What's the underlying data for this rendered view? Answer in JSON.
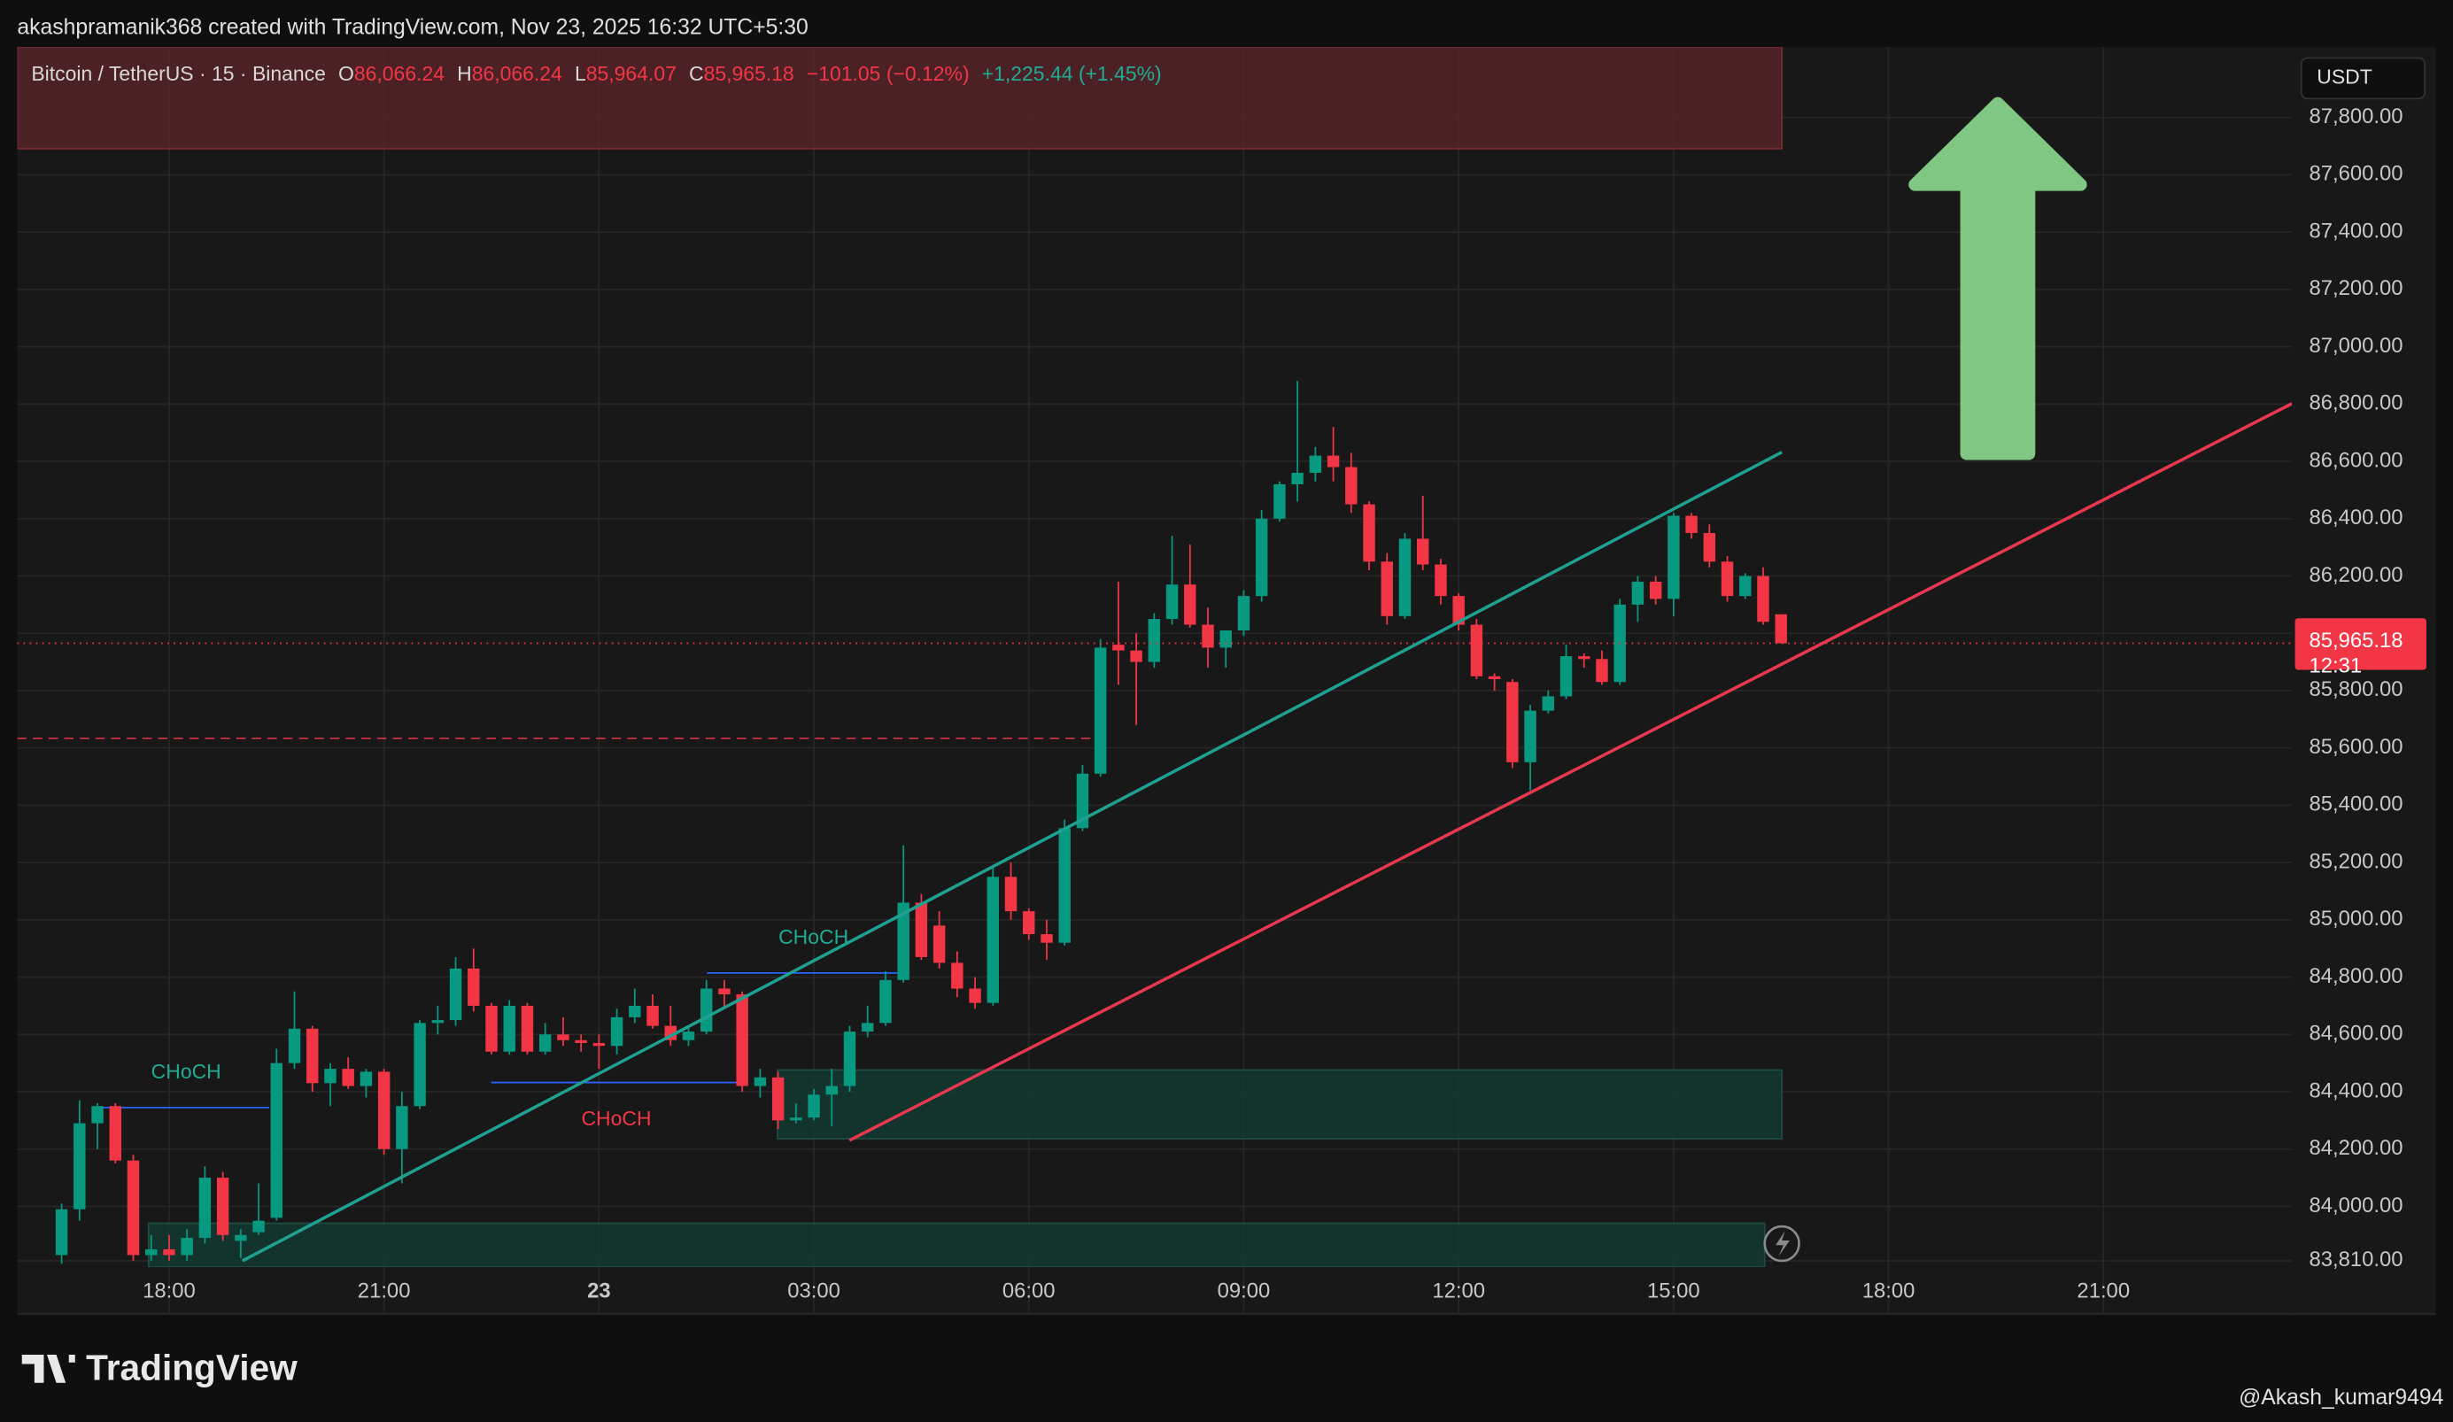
{
  "header": {
    "attribution": "akashpramanik368 created with TradingView.com, Nov 23, 2025 16:32 UTC+5:30",
    "symbol": "Bitcoin / TetherUS · 15 · Binance",
    "ohlc": [
      {
        "key": "O",
        "value": "86,066.24"
      },
      {
        "key": "H",
        "value": "86,066.24"
      },
      {
        "key": "L",
        "value": "85,964.07"
      },
      {
        "key": "C",
        "value": "85,965.18"
      }
    ],
    "change": "−101.05 (−0.12%)",
    "change_session": "+1,225.44 (+1.45%)"
  },
  "chart_data": {
    "type": "candlestick",
    "x": [
      16.5,
      16.75,
      17,
      17.25,
      17.5,
      17.75,
      18,
      18.25,
      18.5,
      18.75,
      19,
      19.25,
      19.5,
      19.75,
      20,
      20.25,
      20.5,
      20.75,
      21,
      21.25,
      21.5,
      21.75,
      22,
      22.25,
      22.5,
      22.75,
      23,
      23.25,
      23.5,
      23.75,
      24,
      24.25,
      24.5,
      24.75,
      25,
      25.25,
      25.5,
      25.75,
      26,
      26.25,
      26.5,
      26.75,
      27,
      27.25,
      27.5,
      27.75,
      28,
      28.25,
      28.5,
      28.75,
      29,
      29.25,
      29.5,
      29.75,
      30,
      30.25,
      30.5,
      30.75,
      31,
      31.25,
      31.5,
      31.75,
      32,
      32.25,
      32.5,
      32.75,
      33,
      33.25,
      33.5,
      33.75,
      34,
      34.25,
      34.5,
      34.75,
      35,
      35.25,
      35.5,
      35.75,
      36,
      36.25,
      36.5,
      36.75,
      37,
      37.25,
      37.5,
      37.75,
      38,
      38.25,
      38.5,
      38.75,
      39,
      39.25,
      39.5,
      39.75,
      40,
      40.25,
      40.5
    ],
    "open": [
      83830,
      83990,
      84290,
      84350,
      84160,
      83830,
      83850,
      83830,
      83890,
      84100,
      83880,
      83910,
      83960,
      84500,
      84620,
      84430,
      84480,
      84420,
      84470,
      84200,
      84350,
      84640,
      84650,
      84830,
      84700,
      84540,
      84700,
      84540,
      84600,
      84580,
      84570,
      84560,
      84660,
      84700,
      84630,
      84580,
      84610,
      84760,
      84740,
      84420,
      84450,
      84300,
      84310,
      84390,
      84420,
      84610,
      84640,
      84790,
      85060,
      84980,
      84850,
      84760,
      84710,
      85150,
      85030,
      84950,
      84920,
      85320,
      85510,
      85960,
      85940,
      85900,
      86050,
      86170,
      86030,
      85950,
      86010,
      86130,
      86400,
      86520,
      86560,
      86620,
      86580,
      86450,
      86250,
      86060,
      86330,
      86240,
      86130,
      86030,
      85850,
      85830,
      85550,
      85730,
      85780,
      85920,
      85910,
      85830,
      86100,
      86180,
      86120,
      86410,
      86350,
      86250,
      86130,
      86200,
      86066.24
    ],
    "high": [
      84010,
      84370,
      84360,
      84360,
      84180,
      83900,
      83900,
      83920,
      84140,
      84120,
      83920,
      84080,
      84550,
      84750,
      84630,
      84500,
      84520,
      84480,
      84480,
      84400,
      84650,
      84700,
      84870,
      84900,
      84710,
      84720,
      84710,
      84640,
      84660,
      84600,
      84600,
      84690,
      84760,
      84740,
      84700,
      84630,
      84790,
      84790,
      84750,
      84480,
      84470,
      84360,
      84410,
      84480,
      84630,
      84700,
      84820,
      85260,
      85090,
      85030,
      84890,
      84800,
      85180,
      85200,
      85040,
      85000,
      85350,
      85540,
      85980,
      86180,
      86000,
      86070,
      86340,
      86310,
      86090,
      86010,
      86150,
      86430,
      86530,
      86880,
      86650,
      86720,
      86630,
      86460,
      86280,
      86350,
      86480,
      86260,
      86140,
      86050,
      85860,
      85840,
      85750,
      85800,
      85960,
      85930,
      85940,
      86120,
      86200,
      86200,
      86420,
      86420,
      86380,
      86270,
      86210,
      86230,
      86066.24
    ],
    "low": [
      83800,
      83950,
      84200,
      84150,
      83810,
      83810,
      83810,
      83810,
      83870,
      83880,
      83820,
      83900,
      83950,
      84480,
      84400,
      84350,
      84410,
      84380,
      84180,
      84080,
      84340,
      84600,
      84630,
      84680,
      84530,
      84530,
      84530,
      84530,
      84560,
      84540,
      84480,
      84530,
      84640,
      84620,
      84560,
      84560,
      84600,
      84690,
      84400,
      84380,
      84270,
      84290,
      84300,
      84280,
      84400,
      84590,
      84630,
      84780,
      84860,
      84830,
      84730,
      84690,
      84700,
      85000,
      84930,
      84860,
      84910,
      85310,
      85500,
      85820,
      85680,
      85880,
      86030,
      86020,
      85880,
      85880,
      85990,
      86110,
      86390,
      86460,
      86530,
      86530,
      86420,
      86220,
      86030,
      86050,
      86220,
      86100,
      86010,
      85840,
      85800,
      85530,
      85450,
      85720,
      85770,
      85880,
      85820,
      85820,
      86040,
      86100,
      86060,
      86330,
      86230,
      86110,
      86120,
      86030,
      85964.07
    ],
    "close": [
      83990,
      84290,
      84350,
      84160,
      83830,
      83850,
      83830,
      83890,
      84100,
      83900,
      83900,
      83950,
      84500,
      84620,
      84430,
      84480,
      84420,
      84470,
      84200,
      84350,
      84640,
      84650,
      84830,
      84700,
      84540,
      84700,
      84540,
      84600,
      84580,
      84570,
      84560,
      84660,
      84700,
      84630,
      84580,
      84610,
      84760,
      84740,
      84420,
      84450,
      84300,
      84310,
      84390,
      84420,
      84610,
      84640,
      84790,
      85060,
      84870,
      84850,
      84760,
      84710,
      85150,
      85030,
      84950,
      84920,
      85320,
      85510,
      85950,
      85940,
      85900,
      86050,
      86170,
      86030,
      85950,
      86010,
      86130,
      86400,
      86520,
      86560,
      86620,
      86580,
      86450,
      86250,
      86060,
      86330,
      86240,
      86130,
      86030,
      85850,
      85840,
      85550,
      85730,
      85780,
      85920,
      85910,
      85830,
      86100,
      86180,
      86120,
      86410,
      86350,
      86250,
      86130,
      86200,
      86040,
      85965.18
    ],
    "up_color": "#089981",
    "down_color": "#f23645",
    "xlim": [
      15.88,
      47.63
    ],
    "ylim": [
      83810,
      88046
    ],
    "xticks": [
      {
        "value": 18,
        "label": "18:00"
      },
      {
        "value": 21,
        "label": "21:00"
      },
      {
        "value": 24,
        "label": "23"
      },
      {
        "value": 27,
        "label": "03:00"
      },
      {
        "value": 30,
        "label": "06:00"
      },
      {
        "value": 33,
        "label": "09:00"
      },
      {
        "value": 36,
        "label": "12:00"
      },
      {
        "value": 39,
        "label": "15:00"
      },
      {
        "value": 42,
        "label": "18:00"
      },
      {
        "value": 45,
        "label": "21:00"
      }
    ],
    "yticks": [
      {
        "value": 83810,
        "label": "83,810.00"
      },
      {
        "value": 84000,
        "label": "84,000.00"
      },
      {
        "value": 84200,
        "label": "84,200.00"
      },
      {
        "value": 84400,
        "label": "84,400.00"
      },
      {
        "value": 84600,
        "label": "84,600.00"
      },
      {
        "value": 84800,
        "label": "84,800.00"
      },
      {
        "value": 85000,
        "label": "85,000.00"
      },
      {
        "value": 85200,
        "label": "85,200.00"
      },
      {
        "value": 85400,
        "label": "85,400.00"
      },
      {
        "value": 85600,
        "label": "85,600.00"
      },
      {
        "value": 85800,
        "label": "85,800.00"
      },
      {
        "value": 86000,
        "label": "86,000.00"
      },
      {
        "value": 86200,
        "label": "86,200.00"
      },
      {
        "value": 86400,
        "label": "86,400.00"
      },
      {
        "value": 86600,
        "label": "86,600.00"
      },
      {
        "value": 86800,
        "label": "86,800.00"
      },
      {
        "value": 87000,
        "label": "87,000.00"
      },
      {
        "value": 87200,
        "label": "87,200.00"
      },
      {
        "value": 87400,
        "label": "87,400.00"
      },
      {
        "value": 87600,
        "label": "87,600.00"
      },
      {
        "value": 87800,
        "label": "87,800.00"
      }
    ],
    "grid": true,
    "currency": "USDT",
    "last_price": {
      "value": 85965.18,
      "label": "85,965.18"
    },
    "countdown": "12:31",
    "annotations": [
      "CHoCH",
      "CHoCH",
      "CHoCH"
    ]
  },
  "footer": {
    "brand": "TradingView",
    "credit": "@Akash_kumar9494"
  }
}
